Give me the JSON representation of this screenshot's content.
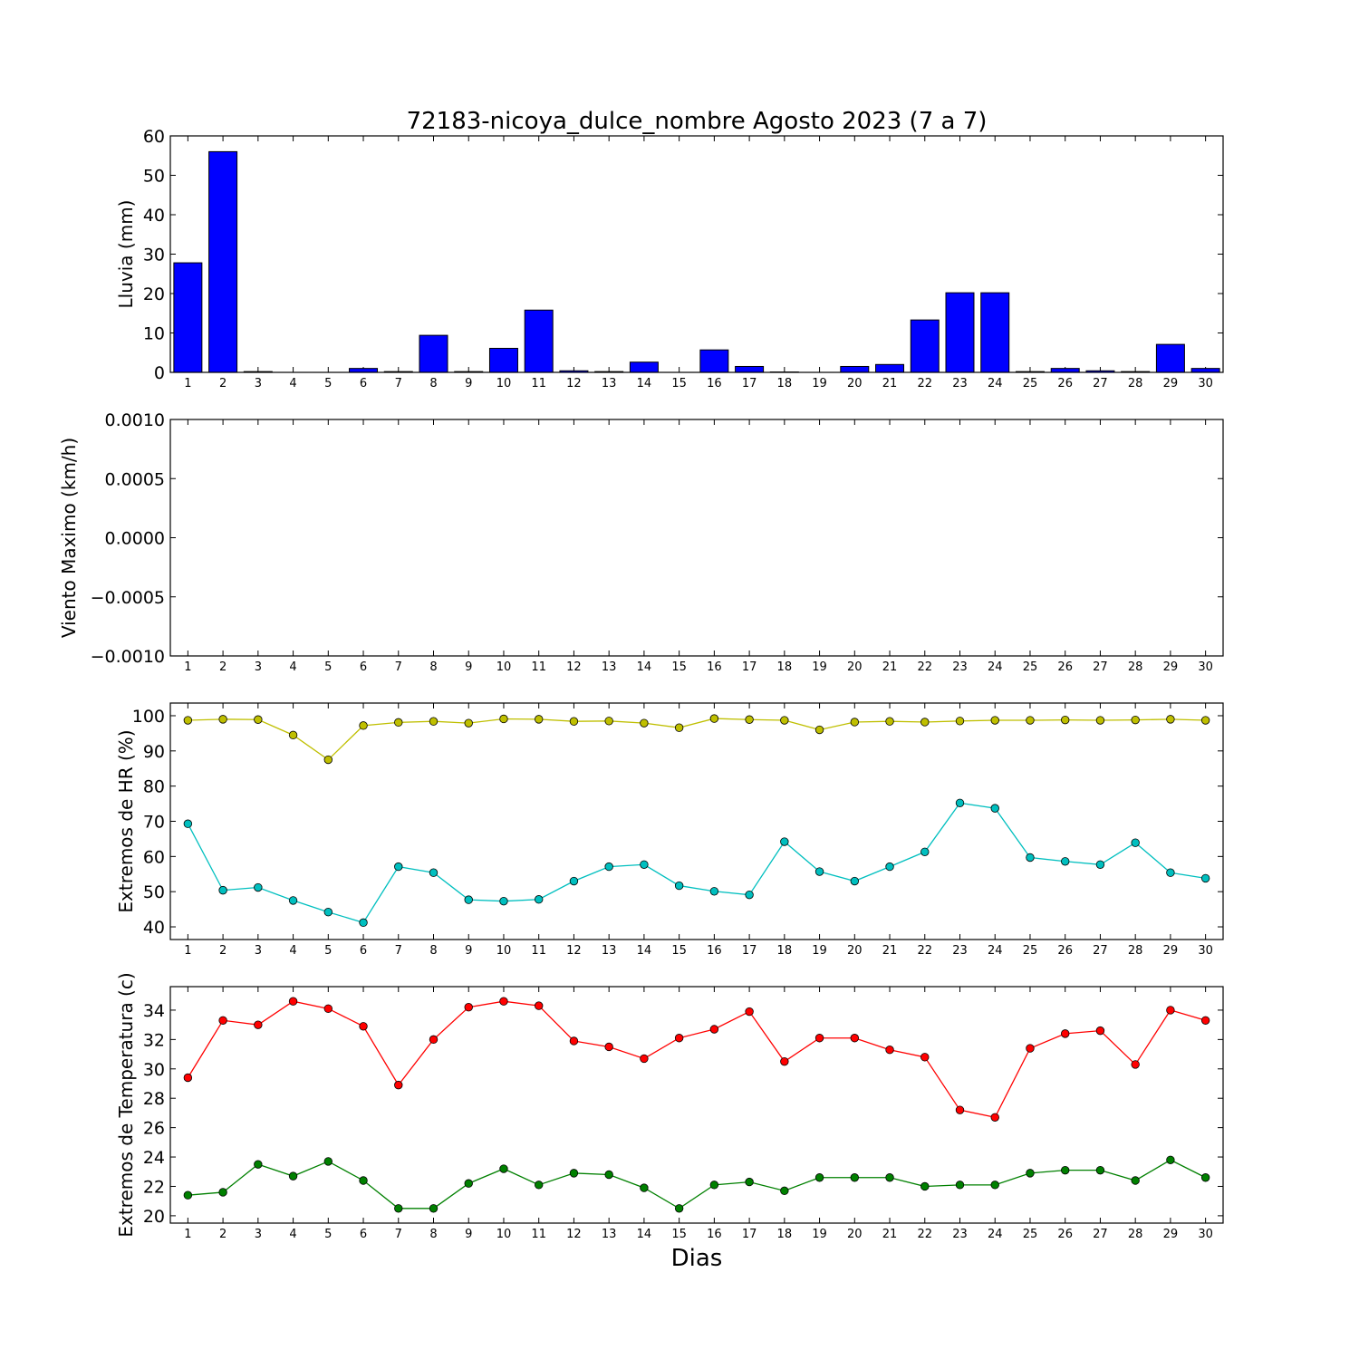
{
  "figure": {
    "title": "72183-nicoya_dulce_nombre Agosto 2023  (7 a 7)",
    "xlabel": "Dias"
  },
  "chart_data": [
    {
      "type": "bar",
      "ylabel": "Lluvia (mm)",
      "ylim": [
        0,
        60
      ],
      "yticks": [
        0,
        10,
        20,
        30,
        40,
        50,
        60
      ],
      "ytick_labels": [
        "0",
        "10",
        "20",
        "30",
        "40",
        "50",
        "60"
      ],
      "xticks": [
        1,
        2,
        3,
        4,
        5,
        6,
        7,
        8,
        9,
        10,
        11,
        12,
        13,
        14,
        15,
        16,
        17,
        18,
        19,
        20,
        21,
        22,
        23,
        24,
        25,
        26,
        27,
        28,
        29,
        30
      ],
      "categories": [
        1,
        2,
        3,
        4,
        5,
        6,
        7,
        8,
        9,
        10,
        11,
        12,
        13,
        14,
        15,
        16,
        17,
        18,
        19,
        20,
        21,
        22,
        23,
        24,
        25,
        26,
        27,
        28,
        29,
        30
      ],
      "series": [
        {
          "color": "#0000ff",
          "values": [
            27.8,
            56.0,
            0.2,
            0.0,
            0.0,
            1.0,
            0.2,
            9.4,
            0.2,
            6.1,
            15.8,
            0.4,
            0.2,
            2.6,
            0.0,
            5.7,
            1.5,
            0.1,
            0.0,
            1.5,
            2.0,
            13.3,
            20.2,
            20.2,
            0.2,
            1.0,
            0.4,
            0.2,
            7.1,
            1.0
          ]
        }
      ]
    },
    {
      "type": "line",
      "ylabel": "Viento Maximo (km/h)",
      "ylim": [
        -0.001,
        0.001
      ],
      "yticks": [
        -0.001,
        -0.0005,
        0.0,
        0.0005,
        0.001
      ],
      "ytick_labels": [
        "−0.0010",
        "−0.0005",
        "0.0000",
        "0.0005",
        "0.0010"
      ],
      "xticks": [
        1,
        2,
        3,
        4,
        5,
        6,
        7,
        8,
        9,
        10,
        11,
        12,
        13,
        14,
        15,
        16,
        17,
        18,
        19,
        20,
        21,
        22,
        23,
        24,
        25,
        26,
        27,
        28,
        29,
        30
      ],
      "series": []
    },
    {
      "type": "line",
      "ylabel": "Extremos de HR (%)",
      "ylim": [
        36.4,
        103.6
      ],
      "yticks": [
        40,
        50,
        60,
        70,
        80,
        90,
        100
      ],
      "ytick_labels": [
        "40",
        "50",
        "60",
        "70",
        "80",
        "90",
        "100"
      ],
      "xticks": [
        1,
        2,
        3,
        4,
        5,
        6,
        7,
        8,
        9,
        10,
        11,
        12,
        13,
        14,
        15,
        16,
        17,
        18,
        19,
        20,
        21,
        22,
        23,
        24,
        25,
        26,
        27,
        28,
        29,
        30
      ],
      "x": [
        1,
        2,
        3,
        4,
        5,
        6,
        7,
        8,
        9,
        10,
        11,
        12,
        13,
        14,
        15,
        16,
        17,
        18,
        19,
        20,
        21,
        22,
        23,
        24,
        25,
        26,
        27,
        28,
        29,
        30
      ],
      "series": [
        {
          "color": "#bfbf00",
          "values": [
            98.7,
            99.0,
            98.9,
            94.5,
            87.5,
            97.2,
            98.1,
            98.4,
            97.9,
            99.1,
            99.0,
            98.4,
            98.5,
            97.9,
            96.6,
            99.2,
            98.9,
            98.7,
            96.0,
            98.2,
            98.4,
            98.2,
            98.5,
            98.7,
            98.7,
            98.8,
            98.7,
            98.8,
            99.0,
            98.7
          ]
        },
        {
          "color": "#00bfbf",
          "values": [
            69.3,
            50.4,
            51.2,
            47.5,
            44.2,
            41.2,
            57.1,
            55.4,
            47.7,
            47.3,
            47.8,
            53.0,
            57.1,
            57.7,
            51.7,
            50.1,
            49.1,
            64.2,
            55.7,
            53.0,
            57.1,
            61.3,
            75.2,
            73.7,
            59.7,
            58.6,
            57.7,
            63.9,
            55.4,
            53.8
          ]
        }
      ]
    },
    {
      "type": "line",
      "ylabel": "Extremos de Temperatura (c)",
      "ylim": [
        19.5,
        35.6
      ],
      "yticks": [
        20,
        22,
        24,
        26,
        28,
        30,
        32,
        34
      ],
      "ytick_labels": [
        "20",
        "22",
        "24",
        "26",
        "28",
        "30",
        "32",
        "34"
      ],
      "xticks": [
        1,
        2,
        3,
        4,
        5,
        6,
        7,
        8,
        9,
        10,
        11,
        12,
        13,
        14,
        15,
        16,
        17,
        18,
        19,
        20,
        21,
        22,
        23,
        24,
        25,
        26,
        27,
        28,
        29,
        30
      ],
      "x": [
        1,
        2,
        3,
        4,
        5,
        6,
        7,
        8,
        9,
        10,
        11,
        12,
        13,
        14,
        15,
        16,
        17,
        18,
        19,
        20,
        21,
        22,
        23,
        24,
        25,
        26,
        27,
        28,
        29,
        30
      ],
      "series": [
        {
          "color": "#ff0000",
          "values": [
            29.4,
            33.3,
            33.0,
            34.6,
            34.1,
            32.9,
            28.9,
            32.0,
            34.2,
            34.6,
            34.3,
            31.9,
            31.5,
            30.7,
            32.1,
            32.7,
            33.9,
            30.5,
            32.1,
            32.1,
            31.3,
            30.8,
            27.2,
            26.7,
            31.4,
            32.4,
            32.6,
            30.3,
            34.0,
            33.3
          ]
        },
        {
          "color": "#008000",
          "values": [
            21.4,
            21.6,
            23.5,
            22.7,
            23.7,
            22.4,
            20.5,
            20.5,
            22.2,
            23.2,
            22.1,
            22.9,
            22.8,
            21.9,
            20.5,
            22.1,
            22.3,
            21.7,
            22.6,
            22.6,
            22.6,
            22.0,
            22.1,
            22.1,
            22.9,
            23.1,
            23.1,
            22.4,
            23.8,
            22.6
          ]
        }
      ]
    }
  ]
}
